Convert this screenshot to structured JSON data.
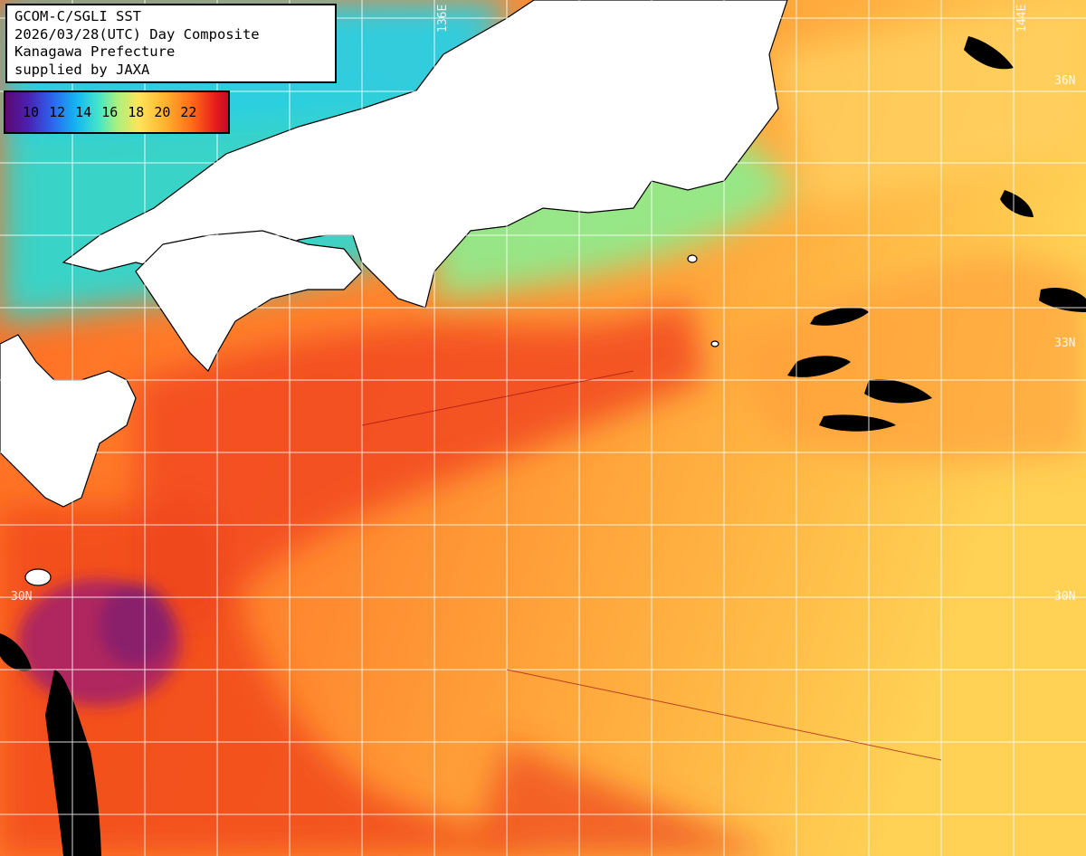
{
  "title_box": {
    "line1": "GCOM-C/SGLI SST",
    "line2": "2026/03/28(UTC) Day Composite",
    "line3": "Kanagawa Prefecture",
    "line4": "supplied by JAXA"
  },
  "legend": {
    "ticks": [
      "10",
      "12",
      "14",
      "16",
      "18",
      "20",
      "22"
    ],
    "colors": [
      "#5a0a6e",
      "#2f5de8",
      "#14b7f2",
      "#45e6c8",
      "#a8f080",
      "#ffe45a",
      "#ffb12e",
      "#ff6a1a",
      "#c40a28"
    ]
  },
  "grid_labels": {
    "lon_136": "136E",
    "lon_144": "144E",
    "lat_36": "36N",
    "lat_33": "33N",
    "lat_30_left": "30N",
    "lat_30_right": "30N"
  },
  "colors": {
    "land": "#ffffff",
    "cloud": "#000000",
    "gridline": "#ffffff"
  }
}
